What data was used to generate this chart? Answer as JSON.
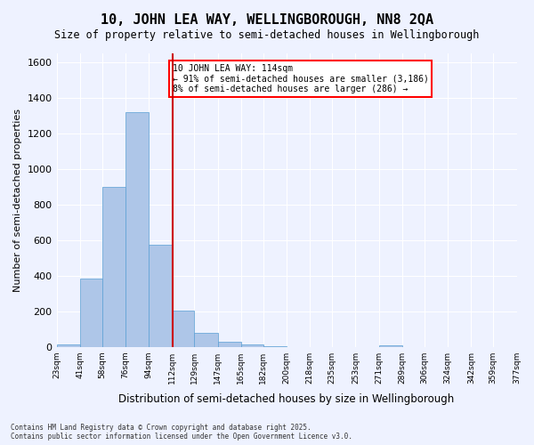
{
  "title_line1": "10, JOHN LEA WAY, WELLINGBOROUGH, NN8 2QA",
  "title_line2": "Size of property relative to semi-detached houses in Wellingborough",
  "xlabel": "Distribution of semi-detached houses by size in Wellingborough",
  "ylabel": "Number of semi-detached properties",
  "annotation_line1": "10 JOHN LEA WAY: 114sqm",
  "annotation_line2": "← 91% of semi-detached houses are smaller (3,186)",
  "annotation_line3": "8% of semi-detached houses are larger (286) →",
  "vline_x": 112,
  "bar_color": "#aec6e8",
  "bar_edge_color": "#5a9fd4",
  "vline_color": "#cc0000",
  "background_color": "#eef2ff",
  "grid_color": "#ffffff",
  "bin_edges": [
    23,
    41,
    58,
    76,
    94,
    112,
    129,
    147,
    165,
    182,
    200,
    218,
    235,
    253,
    271,
    289,
    306,
    324,
    342,
    359,
    377
  ],
  "categories": [
    "23sqm",
    "41sqm",
    "58sqm",
    "76sqm",
    "94sqm",
    "112sqm",
    "129sqm",
    "147sqm",
    "165sqm",
    "182sqm",
    "200sqm",
    "218sqm",
    "235sqm",
    "253sqm",
    "271sqm",
    "289sqm",
    "306sqm",
    "324sqm",
    "342sqm",
    "359sqm",
    "377sqm"
  ],
  "values": [
    15,
    385,
    900,
    1320,
    575,
    205,
    80,
    28,
    15,
    5,
    0,
    0,
    0,
    0,
    10,
    0,
    0,
    0,
    0,
    0
  ],
  "ylim": [
    0,
    1650
  ],
  "yticks": [
    0,
    200,
    400,
    600,
    800,
    1000,
    1200,
    1400,
    1600
  ],
  "footnote": "Contains HM Land Registry data © Crown copyright and database right 2025.\nContains public sector information licensed under the Open Government Licence v3.0."
}
